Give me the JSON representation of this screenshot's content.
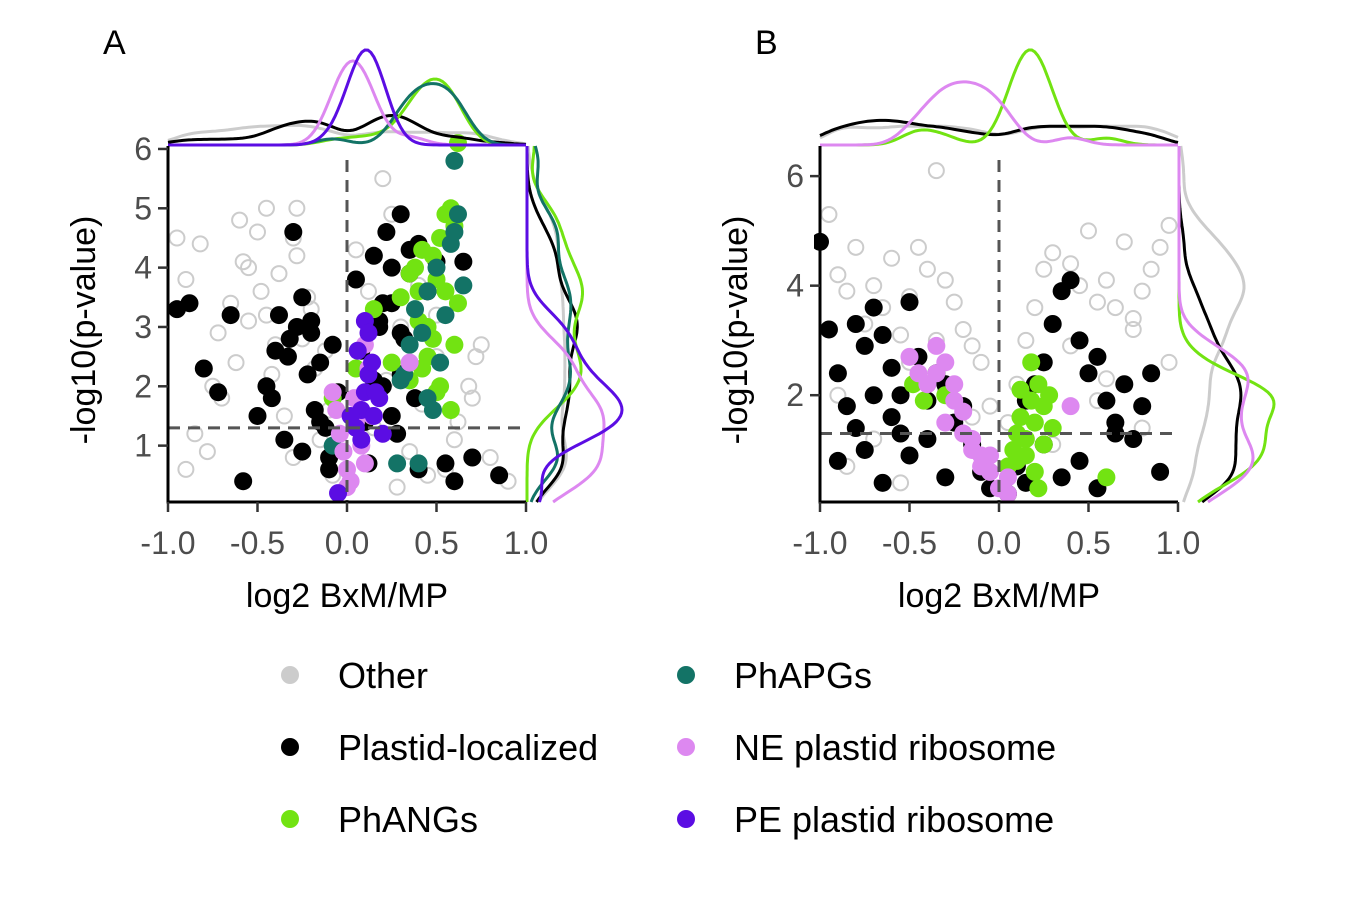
{
  "legend": {
    "items": [
      {
        "label": "Other",
        "color": "#cccccc"
      },
      {
        "label": "PhAPGs",
        "color": "#137366"
      },
      {
        "label": "Plastid-localized",
        "color": "#000000"
      },
      {
        "label": "NE plastid ribosome",
        "color": "#dd88f0"
      },
      {
        "label": "PhANGs",
        "color": "#72e312"
      },
      {
        "label": "PE plastid ribosome",
        "color": "#5b0de3"
      }
    ]
  },
  "chart_data": [
    {
      "panel": "A",
      "type": "scatter",
      "xlabel": "log2 BxM/MP",
      "ylabel": "-log10(p-value)",
      "xlim": [
        -1.0,
        1.0
      ],
      "ylim": [
        0.05,
        6.05
      ],
      "x_ticks": [
        -1.0,
        -0.5,
        0.0,
        0.5,
        1.0
      ],
      "x_tick_labels": [
        "-1.0",
        "-0.5",
        "0.0",
        "0.5",
        "1.0"
      ],
      "y_ticks": [
        1,
        2,
        3,
        4,
        5,
        6
      ],
      "y_tick_labels": [
        "1",
        "2",
        "3",
        "4",
        "5",
        "6"
      ],
      "reference_lines": {
        "x": 0,
        "y": 1.3
      },
      "marginal_density": true,
      "series": [
        {
          "name": "Other",
          "color": "#cccccc",
          "x": [
            -0.9,
            -0.85,
            -0.78,
            -0.7,
            -0.62,
            -0.55,
            -0.48,
            -0.42,
            -0.35,
            -0.3,
            -0.25,
            -0.2,
            -0.15,
            -0.12,
            -0.08,
            -0.05,
            -0.9,
            -0.82,
            -0.72,
            -0.65,
            -0.58,
            -0.5,
            -0.45,
            -0.38,
            -0.28,
            -0.22,
            -0.18,
            -0.1,
            0.1,
            0.15,
            0.22,
            0.3,
            0.35,
            0.42,
            0.5,
            0.55,
            0.62,
            0.68,
            0.75,
            0.8,
            0.9,
            -0.6,
            -0.55,
            -0.45,
            -0.3,
            -0.28,
            0.2,
            0.25,
            0.4,
            0.45,
            0.6,
            0.7,
            -0.95,
            -0.75,
            -0.4,
            0.05,
            0.12,
            0.28,
            0.5,
            0.72
          ],
          "y": [
            0.6,
            1.2,
            0.9,
            1.8,
            2.4,
            3.1,
            3.6,
            2.2,
            1.5,
            0.8,
            2.8,
            3.3,
            1.1,
            2.6,
            0.5,
            1.9,
            3.8,
            4.4,
            2.9,
            3.4,
            4.1,
            4.6,
            5.0,
            3.9,
            4.2,
            3.5,
            2.3,
            1.6,
            0.7,
            1.3,
            2.1,
            3.0,
            0.9,
            1.7,
            2.5,
            0.6,
            1.4,
            2.0,
            2.7,
            0.8,
            0.4,
            4.8,
            4.0,
            3.2,
            4.5,
            5.0,
            5.5,
            4.9,
            3.7,
            0.5,
            1.1,
            1.8,
            4.5,
            2.0,
            2.7,
            4.3,
            3.6,
            0.3,
            3.2,
            2.5
          ]
        },
        {
          "name": "Plastid-localized",
          "color": "#000000",
          "x": [
            -0.95,
            -0.88,
            -0.8,
            -0.72,
            -0.65,
            -0.58,
            -0.5,
            -0.45,
            -0.4,
            -0.35,
            -0.32,
            -0.28,
            -0.25,
            -0.22,
            -0.2,
            -0.18,
            -0.15,
            -0.12,
            -0.1,
            -0.08,
            -0.05,
            -0.3,
            -0.25,
            -0.2,
            -0.15,
            -0.1,
            -0.42,
            -0.38,
            -0.33,
            0.05,
            0.08,
            0.1,
            0.12,
            0.15,
            0.18,
            0.2,
            0.22,
            0.25,
            0.28,
            0.3,
            0.32,
            0.35,
            0.38,
            0.4,
            0.45,
            0.5,
            0.55,
            0.6,
            0.65,
            0.7,
            0.85,
            0.15,
            0.2,
            0.25,
            0.3,
            0.35,
            0.4,
            0.25,
            0.3,
            0.18
          ],
          "y": [
            3.3,
            3.4,
            2.3,
            1.9,
            3.2,
            0.4,
            1.5,
            2.0,
            2.6,
            1.1,
            2.8,
            3.0,
            0.9,
            2.2,
            3.1,
            1.6,
            2.4,
            1.3,
            0.8,
            2.7,
            1.9,
            4.6,
            3.5,
            2.9,
            1.4,
            0.6,
            1.8,
            3.2,
            2.5,
            3.8,
            2.6,
            1.4,
            0.7,
            4.2,
            3.1,
            2.0,
            4.6,
            3.4,
            1.2,
            4.9,
            2.8,
            3.9,
            1.8,
            4.4,
            3.6,
            4.1,
            0.7,
            0.4,
            4.1,
            0.8,
            0.5,
            2.1,
            3.4,
            1.5,
            2.9,
            4.3,
            0.6,
            4.0,
            2.2,
            3.0
          ]
        },
        {
          "name": "PhANGs",
          "color": "#72e312",
          "x": [
            0.35,
            0.38,
            0.4,
            0.42,
            0.45,
            0.48,
            0.5,
            0.52,
            0.55,
            0.58,
            0.6,
            0.62,
            0.35,
            0.4,
            0.45,
            0.5,
            0.55,
            0.6,
            0.42,
            0.48,
            0.52,
            0.58,
            0.3,
            0.62,
            -0.08,
            0.05,
            0.15,
            0.25
          ],
          "y": [
            3.9,
            4.0,
            3.6,
            2.3,
            3.0,
            4.2,
            3.8,
            4.5,
            4.9,
            5.0,
            4.7,
            3.4,
            2.1,
            3.1,
            2.5,
            1.9,
            3.6,
            2.7,
            4.3,
            2.8,
            2.0,
            1.6,
            3.5,
            6.1,
            1.8,
            2.3,
            3.3,
            2.4
          ]
        },
        {
          "name": "PhAPGs",
          "color": "#137366",
          "x": [
            0.3,
            0.35,
            0.38,
            0.42,
            0.45,
            0.48,
            0.5,
            0.55,
            0.58,
            0.6,
            0.62,
            0.65,
            0.4,
            0.45,
            0.52,
            0.32,
            0.28,
            0.6,
            -0.08
          ],
          "y": [
            2.1,
            2.7,
            3.3,
            2.9,
            3.6,
            1.6,
            4.0,
            3.2,
            4.4,
            4.6,
            4.9,
            3.7,
            0.7,
            1.8,
            2.4,
            2.2,
            0.7,
            5.8,
            1.0
          ]
        },
        {
          "name": "NE plastid ribosome",
          "color": "#dd88f0",
          "x": [
            -0.08,
            -0.06,
            -0.04,
            -0.02,
            0.0,
            0.02,
            0.05,
            0.08,
            0.1,
            0.12,
            0.14,
            0.0,
            0.04,
            0.1,
            0.35
          ],
          "y": [
            1.9,
            1.6,
            1.2,
            0.9,
            0.6,
            0.4,
            1.4,
            1.0,
            0.7,
            2.3,
            1.5,
            0.3,
            1.8,
            2.7,
            2.4
          ]
        },
        {
          "name": "PE plastid ribosome",
          "color": "#5b0de3",
          "x": [
            0.05,
            0.08,
            0.1,
            0.12,
            0.15,
            0.18,
            0.2,
            0.06,
            0.1,
            0.14,
            0.16,
            0.12,
            0.08,
            -0.05,
            0.02
          ],
          "y": [
            1.3,
            1.6,
            1.9,
            2.2,
            1.5,
            1.8,
            1.2,
            2.6,
            3.1,
            2.4,
            1.9,
            2.9,
            1.1,
            0.2,
            1.5
          ]
        }
      ]
    },
    {
      "panel": "B",
      "type": "scatter",
      "xlabel": "log2 BxM/MP",
      "ylabel": "-log10(p-value)",
      "xlim": [
        -1.0,
        1.0
      ],
      "ylim": [
        0.05,
        6.55
      ],
      "x_ticks": [
        -1.0,
        -0.5,
        0.0,
        0.5,
        1.0
      ],
      "x_tick_labels": [
        "-1.0",
        "-0.5",
        "0.0",
        "0.5",
        "1.0"
      ],
      "y_ticks": [
        2,
        4,
        6
      ],
      "y_tick_labels": [
        "2",
        "4",
        "6"
      ],
      "reference_lines": {
        "x": 0,
        "y": 1.3
      },
      "marginal_density": true,
      "series": [
        {
          "name": "Other",
          "color": "#cccccc",
          "x": [
            -0.95,
            -0.9,
            -0.85,
            -0.8,
            -0.75,
            -0.7,
            -0.65,
            -0.6,
            -0.55,
            -0.5,
            -0.45,
            -0.4,
            -0.35,
            -0.3,
            -0.25,
            -0.2,
            -0.15,
            -0.1,
            -0.05,
            0.05,
            0.1,
            0.15,
            0.2,
            0.25,
            0.3,
            0.35,
            0.4,
            0.45,
            0.5,
            0.55,
            0.6,
            0.65,
            0.7,
            0.75,
            0.8,
            0.85,
            0.9,
            0.95,
            -0.9,
            -0.7,
            -0.5,
            -0.3,
            -0.15,
            0.2,
            0.4,
            0.6,
            0.8,
            0.95,
            -0.85,
            -0.55,
            -0.35,
            0.3,
            0.55,
            0.75
          ],
          "y": [
            5.3,
            4.2,
            3.9,
            4.7,
            3.3,
            4.0,
            3.6,
            4.5,
            3.1,
            3.8,
            4.7,
            4.3,
            6.1,
            4.1,
            3.7,
            3.2,
            2.9,
            2.6,
            1.8,
            1.5,
            2.2,
            3.0,
            3.6,
            4.3,
            4.6,
            3.9,
            4.4,
            4.0,
            5.0,
            3.7,
            4.1,
            3.6,
            4.8,
            3.4,
            3.9,
            4.3,
            4.7,
            5.1,
            2.0,
            1.2,
            2.6,
            2.1,
            1.6,
            0.6,
            2.9,
            2.3,
            1.4,
            2.6,
            0.7,
            0.4,
            3.0,
            1.1,
            1.9,
            3.2
          ]
        },
        {
          "name": "Plastid-localized",
          "color": "#000000",
          "x": [
            -1.0,
            -0.95,
            -0.9,
            -0.85,
            -0.8,
            -0.75,
            -0.7,
            -0.65,
            -0.6,
            -0.55,
            -0.5,
            -0.45,
            -0.4,
            -0.35,
            -0.3,
            -0.25,
            -0.2,
            -0.15,
            -0.1,
            -0.05,
            -0.9,
            -0.8,
            -0.7,
            -0.6,
            -0.5,
            -0.4,
            -0.3,
            -0.75,
            -0.65,
            -0.55,
            0.05,
            0.1,
            0.15,
            0.2,
            0.25,
            0.3,
            0.35,
            0.4,
            0.45,
            0.5,
            0.55,
            0.6,
            0.65,
            0.7,
            0.75,
            0.8,
            0.85,
            0.9,
            0.35,
            0.45,
            0.55,
            0.25,
            0.15,
            0.65
          ],
          "y": [
            4.8,
            3.2,
            2.4,
            1.8,
            3.3,
            2.9,
            3.6,
            3.1,
            2.5,
            2.0,
            3.7,
            2.7,
            1.9,
            2.4,
            2.2,
            1.5,
            1.8,
            1.1,
            0.6,
            0.3,
            0.8,
            1.4,
            2.0,
            1.6,
            0.9,
            1.2,
            0.5,
            1.0,
            0.4,
            1.3,
            0.2,
            0.7,
            1.9,
            2.2,
            2.6,
            3.3,
            3.9,
            4.1,
            3.0,
            2.4,
            2.7,
            1.9,
            1.5,
            2.2,
            1.2,
            1.8,
            2.4,
            0.6,
            0.5,
            0.8,
            0.3,
            1.1,
            0.4,
            1.3
          ]
        },
        {
          "name": "PhANGs",
          "color": "#72e312",
          "x": [
            0.05,
            0.08,
            0.1,
            0.12,
            0.15,
            0.18,
            0.2,
            0.22,
            0.25,
            0.28,
            0.3,
            0.1,
            0.15,
            0.2,
            0.25,
            0.12,
            0.18,
            -0.48,
            -0.42,
            -0.3,
            0.6,
            0.22
          ],
          "y": [
            0.7,
            1.0,
            1.3,
            1.6,
            1.2,
            1.9,
            1.5,
            2.2,
            1.8,
            2.0,
            1.4,
            0.8,
            0.9,
            0.6,
            1.1,
            2.1,
            2.6,
            2.2,
            1.9,
            2.0,
            0.5,
            0.3
          ]
        },
        {
          "name": "NE plastid ribosome",
          "color": "#dd88f0",
          "x": [
            -0.5,
            -0.45,
            -0.4,
            -0.35,
            -0.3,
            -0.25,
            -0.2,
            -0.15,
            -0.1,
            -0.05,
            0.0,
            0.05,
            -0.3,
            -0.2,
            -0.1,
            0.4,
            -0.35,
            -0.25,
            -0.15,
            0.05,
            -0.05
          ],
          "y": [
            2.7,
            2.4,
            2.2,
            2.9,
            2.6,
            1.9,
            1.7,
            1.2,
            0.9,
            0.6,
            0.3,
            0.5,
            1.5,
            1.3,
            0.7,
            1.8,
            2.4,
            2.2,
            1.0,
            0.2,
            0.9
          ]
        }
      ]
    }
  ]
}
